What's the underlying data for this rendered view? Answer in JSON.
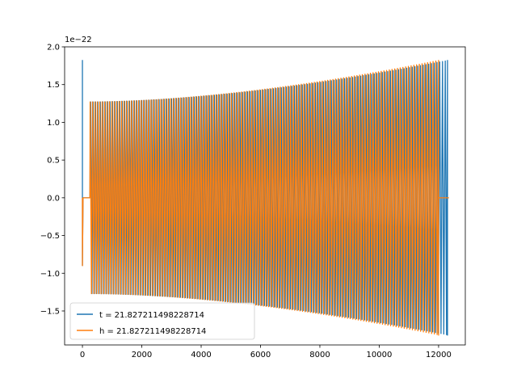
{
  "chart_data": {
    "type": "line",
    "title": "",
    "xlabel": "",
    "ylabel": "",
    "xlim": [
      -600,
      12900
    ],
    "ylim": [
      -1.95,
      2.0
    ],
    "y_offset_label": "1e−22",
    "grid": false,
    "legend_position": "lower-left",
    "x_ticks": [
      {
        "value": 0,
        "label": "0"
      },
      {
        "value": 2000,
        "label": "2000"
      },
      {
        "value": 4000,
        "label": "4000"
      },
      {
        "value": 6000,
        "label": "6000"
      },
      {
        "value": 8000,
        "label": "8000"
      },
      {
        "value": 10000,
        "label": "10000"
      },
      {
        "value": 12000,
        "label": "12000"
      }
    ],
    "y_ticks": [
      {
        "value": -1.5,
        "label": "−1.5"
      },
      {
        "value": -1.0,
        "label": "−1.0"
      },
      {
        "value": -0.5,
        "label": "−0.5"
      },
      {
        "value": 0.0,
        "label": "0.0"
      },
      {
        "value": 0.5,
        "label": "0.5"
      },
      {
        "value": 1.0,
        "label": "1.0"
      },
      {
        "value": 1.5,
        "label": "1.5"
      },
      {
        "value": 2.0,
        "label": "2.0"
      }
    ],
    "series": [
      {
        "name": "t = 21.827211498228714",
        "color": "#1f77b4",
        "x_start": 0,
        "x_end": 12300,
        "initial_spike": 1.82,
        "initial_trough": -0.9,
        "amplitude_start": 1.27,
        "amplitude_end": 1.82,
        "cycles": 138
      },
      {
        "name": "h = 21.827211498228714",
        "color": "#ff7f0e",
        "x_start": 0,
        "x_end": 12000,
        "flat_after_end": 12350,
        "initial_trough": -0.9,
        "amplitude_start": 1.27,
        "amplitude_end": 1.82,
        "cycles": 135
      }
    ]
  }
}
